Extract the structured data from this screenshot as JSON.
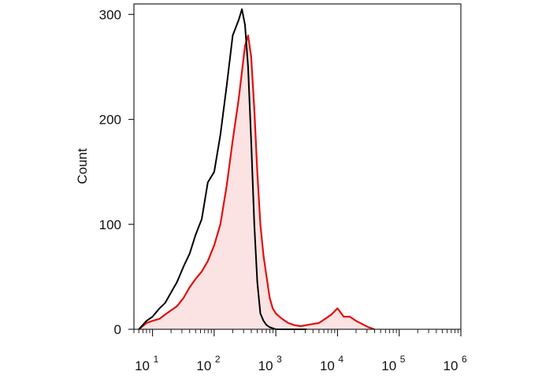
{
  "chart_data": {
    "type": "histogram",
    "title": "",
    "xlabel": "",
    "ylabel": "Count",
    "x_scale": "log",
    "xlim": [
      5,
      1000000
    ],
    "ylim": [
      0,
      310
    ],
    "x_ticks": [
      {
        "value": 10,
        "base": "10",
        "exp": "1"
      },
      {
        "value": 100,
        "base": "10",
        "exp": "2"
      },
      {
        "value": 1000,
        "base": "10",
        "exp": "3"
      },
      {
        "value": 10000,
        "base": "10",
        "exp": "4"
      },
      {
        "value": 100000,
        "base": "10",
        "exp": "5"
      },
      {
        "value": 1000000,
        "base": "10",
        "exp": "6"
      }
    ],
    "y_ticks": [
      0,
      100,
      200,
      300
    ],
    "grid": false,
    "legend": null,
    "series": [
      {
        "color": "#000000",
        "fill": "none",
        "x": [
          6,
          8,
          10,
          13,
          16,
          20,
          25,
          32,
          40,
          50,
          63,
          79,
          100,
          126,
          158,
          200,
          251,
          282,
          316,
          355,
          398,
          447,
          501,
          562,
          631,
          708,
          794,
          891,
          1000,
          1259,
          1585,
          2000,
          2512,
          3162
        ],
        "values": [
          0,
          8,
          12,
          20,
          25,
          35,
          45,
          60,
          72,
          90,
          105,
          140,
          150,
          185,
          230,
          280,
          295,
          305,
          290,
          250,
          180,
          100,
          45,
          15,
          8,
          4,
          2,
          1,
          0,
          0,
          0,
          0,
          0,
          0
        ]
      },
      {
        "color": "#e01010",
        "fill": "#fbe3e3",
        "x": [
          6,
          8,
          10,
          13,
          16,
          20,
          25,
          32,
          40,
          50,
          63,
          79,
          100,
          126,
          158,
          200,
          251,
          316,
          355,
          398,
          447,
          501,
          562,
          631,
          708,
          794,
          891,
          1000,
          1259,
          1585,
          2000,
          2512,
          3162,
          3981,
          5012,
          6310,
          7943,
          10000,
          12589,
          15849,
          19953,
          25119,
          31623,
          39811
        ],
        "values": [
          0,
          6,
          8,
          10,
          14,
          18,
          22,
          30,
          40,
          48,
          55,
          65,
          80,
          100,
          135,
          180,
          220,
          270,
          280,
          260,
          210,
          150,
          100,
          70,
          50,
          30,
          20,
          15,
          10,
          6,
          4,
          3,
          4,
          5,
          6,
          10,
          14,
          20,
          12,
          12,
          8,
          5,
          2,
          0
        ]
      }
    ]
  }
}
